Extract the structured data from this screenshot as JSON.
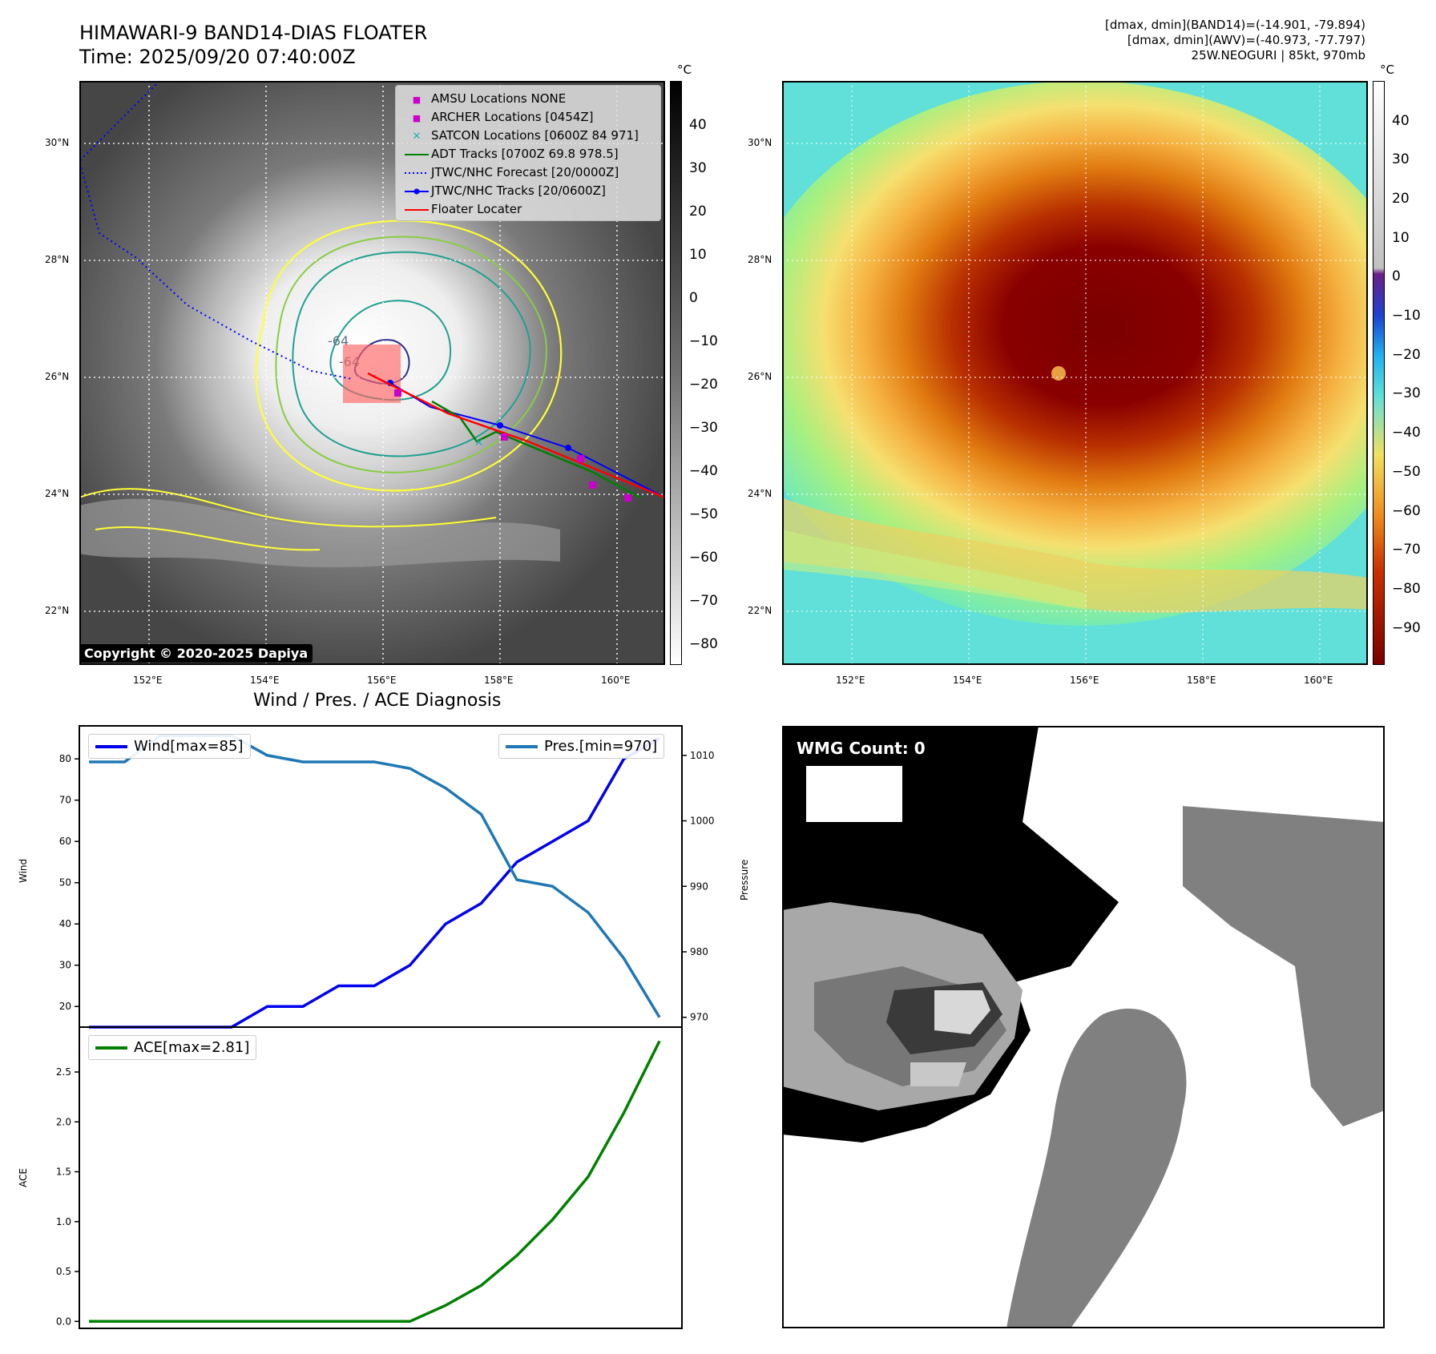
{
  "header": {
    "title_line1": "HIMAWARI-9 BAND14-DIAS FLOATER",
    "title_line2": "Time: 2025/09/20 07:40:00Z",
    "info_line1": "[dmax, dmin](BAND14)=(-14.901, -79.894)",
    "info_line2": "[dmax, dmin](AWV)=(-40.973, -77.797)",
    "info_line3": "25W.NEOGURI | 85kt, 970mb"
  },
  "map_axes": {
    "lat_labels": [
      "30°N",
      "28°N",
      "26°N",
      "24°N",
      "22°N"
    ],
    "lon_labels": [
      "152°E",
      "154°E",
      "156°E",
      "158°E",
      "160°E"
    ],
    "unit": "°C"
  },
  "ir_panel": {
    "copyright": "Copyright © 2020-2025 Dapiya",
    "contour_labels": [
      "-64",
      "-64"
    ],
    "legend": [
      {
        "label": "AMSU Locations NONE",
        "symbol": "■",
        "color": "#cc00cc"
      },
      {
        "label": "ARCHER Locations [0454Z]",
        "symbol": "■",
        "color": "#cc00cc"
      },
      {
        "label": "SATCON Locations [0600Z 84 971]",
        "symbol": "✕",
        "color": "#20b2aa"
      },
      {
        "label": "ADT Tracks [0700Z 69.8 978.5]",
        "symbol": "line",
        "color": "#008000"
      },
      {
        "label": "JTWC/NHC Forecast [20/0000Z]",
        "symbol": "dotted",
        "color": "#0000ff"
      },
      {
        "label": "JTWC/NHC Tracks [20/0600Z]",
        "symbol": "dotline",
        "color": "#0000ff"
      },
      {
        "label": "Floater Locater",
        "symbol": "line",
        "color": "#ff0000"
      }
    ],
    "colorbar_ticks": [
      "40",
      "30",
      "20",
      "10",
      "0",
      "−10",
      "−20",
      "−30",
      "−40",
      "−50",
      "−60",
      "−70",
      "−80"
    ]
  },
  "awv_panel": {
    "colorbar_ticks": [
      "40",
      "30",
      "20",
      "10",
      "0",
      "−10",
      "−20",
      "−30",
      "−40",
      "−50",
      "−60",
      "−70",
      "−80",
      "−90"
    ]
  },
  "wmg_panel": {
    "label": "WMG Count: 0"
  },
  "colors": {
    "wind": "#0000ee",
    "pressure": "#1f77b4",
    "ace": "#008000"
  },
  "chart_data": [
    {
      "type": "line",
      "title": "Wind / Pres. / ACE Diagnosis",
      "ylabel": "Wind",
      "ylabel_right": "Pressure",
      "ylim": [
        15,
        88
      ],
      "ylim_right": [
        968.5,
        1014.5
      ],
      "yticks": [
        20,
        30,
        40,
        50,
        60,
        70,
        80
      ],
      "yticks_right": [
        970,
        980,
        990,
        1000,
        1010
      ],
      "series": [
        {
          "name": "Wind[max=85]",
          "axis": "left",
          "values": [
            15,
            15,
            15,
            15,
            15,
            20,
            20,
            25,
            25,
            30,
            40,
            45,
            55,
            60,
            65,
            80,
            85
          ]
        },
        {
          "name": "Pres.[min=970]",
          "axis": "right",
          "values": [
            1009,
            1009,
            1013,
            1013,
            1013,
            1010,
            1009,
            1009,
            1009,
            1008,
            1005,
            1001,
            991,
            990,
            986,
            979,
            970
          ]
        }
      ]
    },
    {
      "type": "line",
      "ylabel": "ACE",
      "ylim": [
        -0.07,
        2.95
      ],
      "yticks": [
        "0.0",
        "0.5",
        "1.0",
        "1.5",
        "2.0",
        "2.5"
      ],
      "series": [
        {
          "name": "ACE[max=2.81]",
          "values": [
            0,
            0,
            0,
            0,
            0,
            0,
            0,
            0,
            0,
            0,
            0.16,
            0.36,
            0.66,
            1.02,
            1.45,
            2.09,
            2.81
          ]
        }
      ]
    }
  ]
}
